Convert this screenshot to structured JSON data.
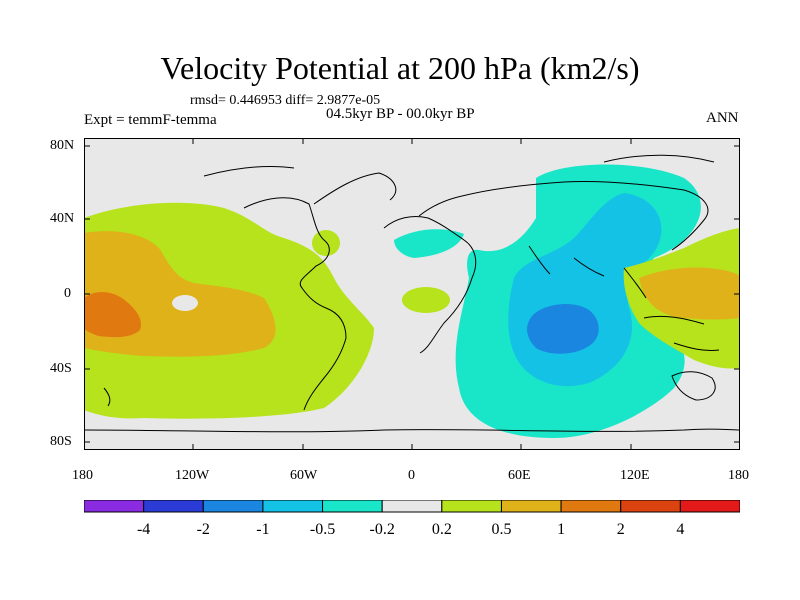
{
  "header": {
    "title": "Velocity Potential at 200 hPa (km2/s)",
    "stats": "rmsd= 0.446953  diff= 2.9877e-05",
    "experiment": "Expt = temmF-temma",
    "period": "04.5kyr BP - 00.0kyr BP",
    "season": "ANN"
  },
  "map": {
    "lat_ticks": [
      "80N",
      "40N",
      "0",
      "40S",
      "80S"
    ],
    "lon_ticks": [
      "180",
      "120W",
      "60W",
      "0",
      "60E",
      "120E",
      "180"
    ]
  },
  "colorbar": {
    "colors": [
      "#8a2be2",
      "#2a3bd6",
      "#1a86e0",
      "#14c2e6",
      "#19e6c8",
      "#e8e8e8",
      "#b6e31c",
      "#e0b21a",
      "#e07a10",
      "#dc4310",
      "#e41a1a"
    ],
    "labels": [
      "-4",
      "-2",
      "-1",
      "-0.5",
      "-0.2",
      "0.2",
      "0.5",
      "1",
      "2",
      "4"
    ]
  },
  "colors": {
    "ocean_land_bg": "#e8e8e8",
    "neg_light": "#19e6c8",
    "neg_mid": "#14c2e6",
    "neg_strong": "#1a86e0",
    "pos_light": "#b6e31c",
    "pos_mid": "#e0b21a",
    "pos_strong": "#e07a10"
  }
}
